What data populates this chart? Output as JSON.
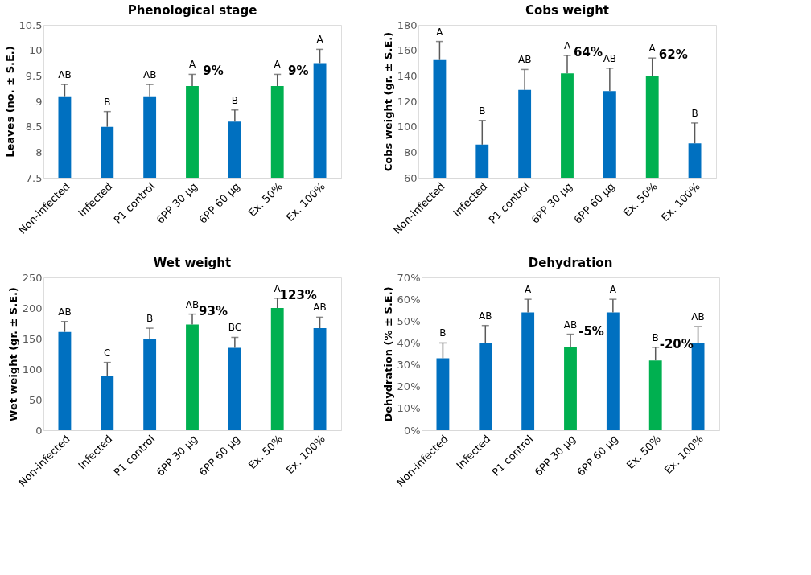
{
  "chart_data": [
    {
      "type": "bar",
      "title": "Phenological stage",
      "ylabel": "Leaves (no. ± S.E.)",
      "categories": [
        "Non-infected",
        "Infected",
        "P1 control",
        "6PP 30 µg",
        "6PP 60 µg",
        "Ex. 50%",
        "Ex. 100%"
      ],
      "values": [
        9.1,
        8.5,
        9.1,
        9.3,
        8.6,
        9.3,
        9.75
      ],
      "colors": [
        "#0070c0",
        "#0070c0",
        "#0070c0",
        "#00b050",
        "#0070c0",
        "#00b050",
        "#0070c0"
      ],
      "errors": [
        [
          9.1,
          9.33
        ],
        [
          8.5,
          8.8
        ],
        [
          9.1,
          9.33
        ],
        [
          9.3,
          9.53
        ],
        [
          8.6,
          8.83
        ],
        [
          9.3,
          9.53
        ],
        [
          9.75,
          10.02
        ]
      ],
      "ylim": [
        7.5,
        10.5
      ],
      "yticks": [
        7.5,
        8,
        8.5,
        9,
        9.5,
        10,
        10.5
      ],
      "grid": false,
      "annotations": [
        {
          "text": "AB",
          "x": "Non-infected",
          "y": 9.33
        },
        {
          "text": "B",
          "x": "Infected",
          "y": 8.8
        },
        {
          "text": "AB",
          "x": "P1 control",
          "y": 9.33
        },
        {
          "text": "A",
          "x": "6PP 30 µg",
          "y": 9.53
        },
        {
          "text": "B",
          "x": "6PP 60 µg",
          "y": 8.83
        },
        {
          "text": "A",
          "x": "Ex. 50%",
          "y": 9.53
        },
        {
          "text": "A",
          "x": "Ex. 100%",
          "y": 10.02
        },
        {
          "text": "9%",
          "x": "6PP 30 µg",
          "y": 9.53
        },
        {
          "text": "9%",
          "x": "Ex. 50%",
          "y": 9.53
        }
      ]
    },
    {
      "type": "bar",
      "title": "Cobs weight",
      "ylabel": "Cobs weight (gr. ± S.E.)",
      "categories": [
        "Non-infected",
        "Infected",
        "P1 control",
        "6PP 30 µg",
        "6PP 60 µg",
        "Ex. 50%",
        "Ex. 100%"
      ],
      "values": [
        153,
        86,
        129,
        142,
        128,
        140,
        87
      ],
      "colors": [
        "#0070c0",
        "#0070c0",
        "#0070c0",
        "#00b050",
        "#0070c0",
        "#00b050",
        "#0070c0"
      ],
      "errors": [
        [
          153,
          167
        ],
        [
          86,
          105
        ],
        [
          129,
          145
        ],
        [
          142,
          156
        ],
        [
          128,
          146
        ],
        [
          140,
          154
        ],
        [
          87,
          103
        ]
      ],
      "ylim": [
        60,
        180
      ],
      "yticks": [
        60,
        80,
        100,
        120,
        140,
        160,
        180
      ],
      "grid": false,
      "annotations": [
        {
          "text": "A",
          "x": "Non-infected",
          "y": 167
        },
        {
          "text": "B",
          "x": "Infected",
          "y": 105
        },
        {
          "text": "AB",
          "x": "P1 control",
          "y": 145
        },
        {
          "text": "A",
          "x": "6PP 30 µg",
          "y": 156
        },
        {
          "text": "AB",
          "x": "6PP 60 µg",
          "y": 146
        },
        {
          "text": "A",
          "x": "Ex. 50%",
          "y": 154
        },
        {
          "text": "B",
          "x": "Ex. 100%",
          "y": 103
        },
        {
          "text": "64%",
          "x": "6PP 30 µg",
          "y": 156
        },
        {
          "text": "62%",
          "x": "Ex. 50%",
          "y": 154
        }
      ]
    },
    {
      "type": "bar",
      "title": "Wet weight",
      "ylabel": "Wet weight (gr. ± S.E.)",
      "categories": [
        "Non-infected",
        "Infected",
        "P1 control",
        "6PP 30 µg",
        "6PP 60 µg",
        "Ex. 50%",
        "Ex. 100%"
      ],
      "values": [
        161,
        89,
        150,
        173,
        135,
        200,
        167
      ],
      "colors": [
        "#0070c0",
        "#0070c0",
        "#0070c0",
        "#00b050",
        "#0070c0",
        "#00b050",
        "#0070c0"
      ],
      "errors": [
        [
          161,
          178
        ],
        [
          89,
          111
        ],
        [
          150,
          167
        ],
        [
          173,
          190
        ],
        [
          135,
          152
        ],
        [
          200,
          216
        ],
        [
          167,
          185
        ]
      ],
      "ylim": [
        0,
        250
      ],
      "yticks": [
        0,
        50,
        100,
        150,
        200,
        250
      ],
      "grid": false,
      "annotations": [
        {
          "text": "AB",
          "x": "Non-infected",
          "y": 178
        },
        {
          "text": "C",
          "x": "Infected",
          "y": 111
        },
        {
          "text": "B",
          "x": "P1 control",
          "y": 167
        },
        {
          "text": "AB",
          "x": "6PP 30 µg",
          "y": 190
        },
        {
          "text": "BC",
          "x": "6PP 60 µg",
          "y": 152
        },
        {
          "text": "A",
          "x": "Ex. 50%",
          "y": 216
        },
        {
          "text": "AB",
          "x": "Ex. 100%",
          "y": 185
        },
        {
          "text": "93%",
          "x": "6PP 30 µg",
          "y": 190
        },
        {
          "text": "123%",
          "x": "Ex. 50%",
          "y": 216
        }
      ]
    },
    {
      "type": "bar",
      "title": "Dehydration",
      "ylabel": "Dehydration (% ± S.E.)",
      "categories": [
        "Non-infected",
        "Infected",
        "P1 control",
        "6PP 30 µg",
        "6PP 60 µg",
        "Ex. 50%",
        "Ex. 100%"
      ],
      "values": [
        33,
        40,
        54,
        38,
        54,
        32,
        40
      ],
      "colors": [
        "#0070c0",
        "#0070c0",
        "#0070c0",
        "#00b050",
        "#0070c0",
        "#00b050",
        "#0070c0"
      ],
      "errors": [
        [
          33,
          40
        ],
        [
          40,
          48
        ],
        [
          54,
          60
        ],
        [
          38,
          44
        ],
        [
          54,
          60
        ],
        [
          32,
          38
        ],
        [
          40,
          47.5
        ]
      ],
      "ylim": [
        0,
        70
      ],
      "yticks": [
        {
          "value": 0,
          "label": "0%"
        },
        {
          "value": 10,
          "label": "10%"
        },
        {
          "value": 20,
          "label": "20%"
        },
        {
          "value": 30,
          "label": "30%"
        },
        {
          "value": 40,
          "label": "40%"
        },
        {
          "value": 50,
          "label": "50%"
        },
        {
          "value": 60,
          "label": "60%"
        },
        {
          "value": 70,
          "label": "70%"
        }
      ],
      "grid": false,
      "annotations": [
        {
          "text": "B",
          "x": "Non-infected",
          "y": 40
        },
        {
          "text": "AB",
          "x": "Infected",
          "y": 48
        },
        {
          "text": "A",
          "x": "P1 control",
          "y": 60
        },
        {
          "text": "AB",
          "x": "6PP 30 µg",
          "y": 44
        },
        {
          "text": "A",
          "x": "6PP 60 µg",
          "y": 60
        },
        {
          "text": "B",
          "x": "Ex. 50%",
          "y": 38
        },
        {
          "text": "AB",
          "x": "Ex. 100%",
          "y": 47.5
        },
        {
          "text": "-5%",
          "x": "6PP 30 µg",
          "y": 44
        },
        {
          "text": "-20%",
          "x": "Ex. 50%",
          "y": 38
        }
      ]
    }
  ]
}
